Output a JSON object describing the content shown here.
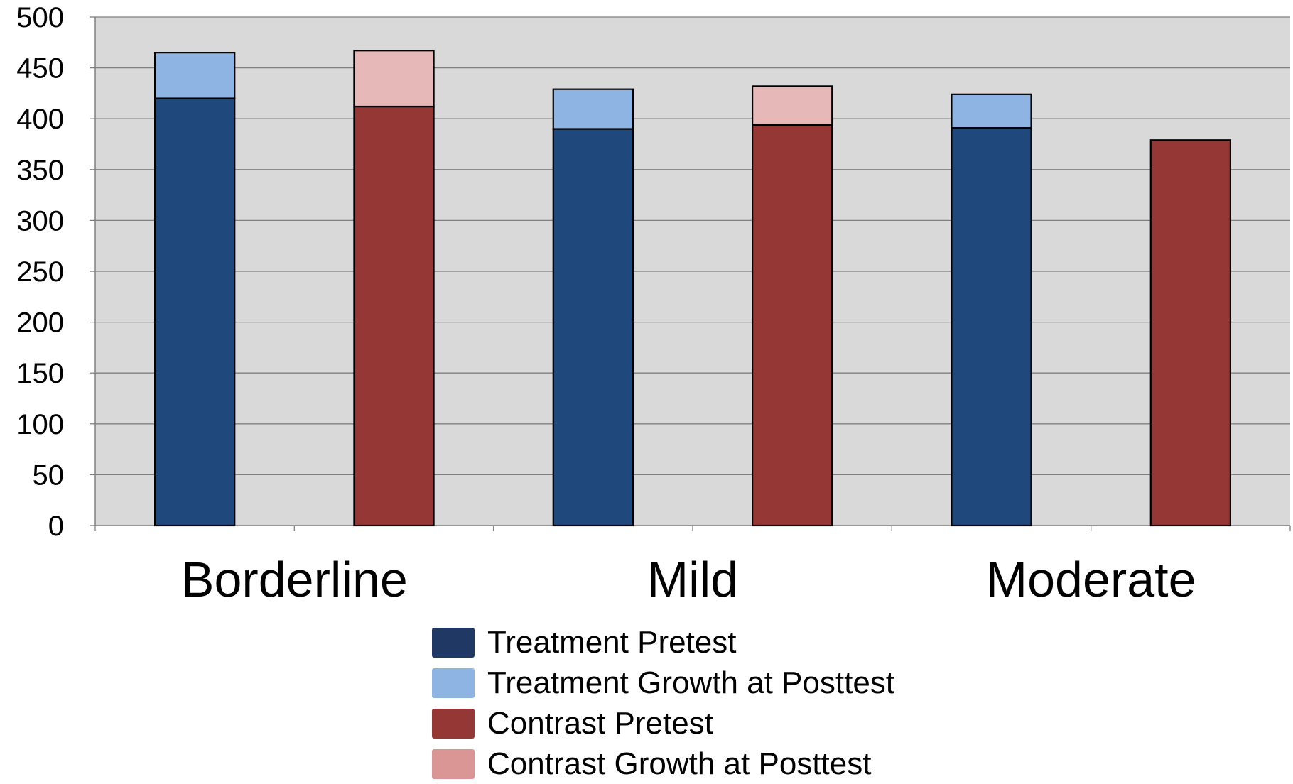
{
  "chart_data": {
    "type": "bar",
    "stacked": true,
    "categories": [
      "Borderline",
      "Mild",
      "Moderate"
    ],
    "groups": [
      "Treatment",
      "Contrast"
    ],
    "ylim": [
      0,
      500
    ],
    "yticks": [
      "0",
      "50",
      "100",
      "150",
      "200",
      "250",
      "300",
      "350",
      "400",
      "450",
      "500"
    ],
    "grid": true,
    "legend_position": "bottom-center",
    "series": [
      {
        "name": "Treatment Pretest",
        "group": "Treatment",
        "values": [
          420,
          390,
          391
        ],
        "color": "#1f497d"
      },
      {
        "name": "Treatment Growth at Posttest",
        "group": "Treatment",
        "values": [
          45,
          39,
          33
        ],
        "color": "#8eb4e3"
      },
      {
        "name": "Contrast Pretest",
        "group": "Contrast",
        "values": [
          412,
          394,
          379
        ],
        "color": "#953735"
      },
      {
        "name": "Contrast Growth at Posttest",
        "group": "Contrast",
        "values": [
          55,
          38,
          0
        ],
        "color": "#e6b9b8"
      }
    ],
    "legend_swatch_colors": [
      "#1f3864",
      "#8eb4e3",
      "#953735",
      "#d99694"
    ],
    "plot_background": "#d9d9d9",
    "gridline_color": "#808080"
  }
}
